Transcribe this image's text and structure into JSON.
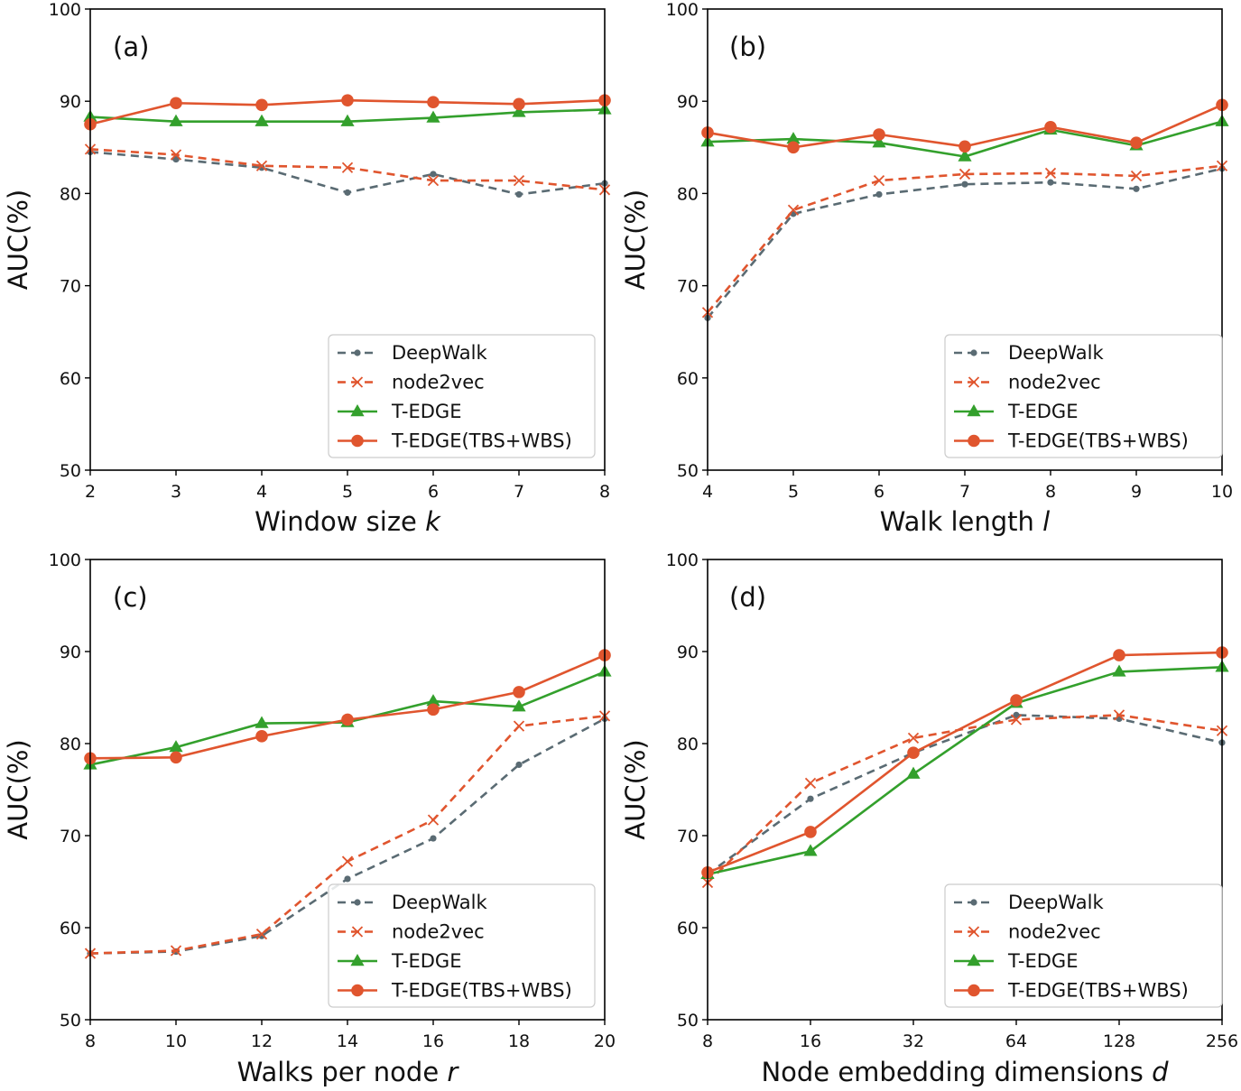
{
  "legend": {
    "DeepWalk": "DeepWalk",
    "node2vec": "node2vec",
    "T-EDGE": "T-EDGE",
    "T-EDGE(TBS+WBS)": "T-EDGE(TBS+WBS)"
  },
  "chart_data": [
    {
      "type": "line",
      "panel": "(a)",
      "xlabel": "Window size",
      "xvar": "k",
      "ylabel": "AUC(%)",
      "ylim": [
        50,
        100
      ],
      "yticks": [
        50,
        60,
        70,
        80,
        90,
        100
      ],
      "xscale": "categorical",
      "categories": [
        "2",
        "3",
        "4",
        "5",
        "6",
        "7",
        "8"
      ],
      "legend_position": "lower-right",
      "series": [
        {
          "name": "DeepWalk",
          "values": [
            84.5,
            83.7,
            82.8,
            80.1,
            82.1,
            79.9,
            81.1
          ]
        },
        {
          "name": "node2vec",
          "values": [
            84.8,
            84.2,
            83.0,
            82.8,
            81.4,
            81.4,
            80.4
          ]
        },
        {
          "name": "T-EDGE",
          "values": [
            88.3,
            87.8,
            87.8,
            87.8,
            88.2,
            88.8,
            89.1
          ]
        },
        {
          "name": "T-EDGE(TBS+WBS)",
          "values": [
            87.5,
            89.8,
            89.6,
            90.1,
            89.9,
            89.7,
            90.1
          ]
        }
      ]
    },
    {
      "type": "line",
      "panel": "(b)",
      "xlabel": "Walk length",
      "xvar": "l",
      "ylabel": "AUC(%)",
      "ylim": [
        50,
        100
      ],
      "yticks": [
        50,
        60,
        70,
        80,
        90,
        100
      ],
      "xscale": "categorical",
      "categories": [
        "4",
        "5",
        "6",
        "7",
        "8",
        "9",
        "10"
      ],
      "legend_position": "lower-right",
      "series": [
        {
          "name": "DeepWalk",
          "values": [
            66.5,
            77.8,
            79.9,
            81.0,
            81.2,
            80.5,
            82.7
          ]
        },
        {
          "name": "node2vec",
          "values": [
            67.1,
            78.2,
            81.4,
            82.1,
            82.2,
            81.9,
            83.0
          ]
        },
        {
          "name": "T-EDGE",
          "values": [
            85.6,
            85.9,
            85.5,
            84.0,
            86.9,
            85.2,
            87.8
          ]
        },
        {
          "name": "T-EDGE(TBS+WBS)",
          "values": [
            86.6,
            85.0,
            86.4,
            85.1,
            87.2,
            85.5,
            89.6
          ]
        }
      ]
    },
    {
      "type": "line",
      "panel": "(c)",
      "xlabel": "Walks per node",
      "xvar": "r",
      "ylabel": "AUC(%)",
      "ylim": [
        50,
        100
      ],
      "yticks": [
        50,
        60,
        70,
        80,
        90,
        100
      ],
      "xscale": "categorical",
      "categories": [
        "8",
        "10",
        "12",
        "14",
        "16",
        "18",
        "20"
      ],
      "legend_position": "lower-right",
      "series": [
        {
          "name": "DeepWalk",
          "values": [
            57.2,
            57.4,
            59.1,
            65.3,
            69.7,
            77.7,
            82.7
          ]
        },
        {
          "name": "node2vec",
          "values": [
            57.2,
            57.5,
            59.3,
            67.2,
            71.7,
            81.9,
            83.0
          ]
        },
        {
          "name": "T-EDGE",
          "values": [
            77.7,
            79.6,
            82.2,
            82.3,
            84.6,
            84.0,
            87.8
          ]
        },
        {
          "name": "T-EDGE(TBS+WBS)",
          "values": [
            78.4,
            78.5,
            80.8,
            82.6,
            83.7,
            85.6,
            89.6
          ]
        }
      ]
    },
    {
      "type": "line",
      "panel": "(d)",
      "xlabel": "Node embedding dimensions",
      "xvar": "d",
      "ylabel": "AUC(%)",
      "ylim": [
        50,
        100
      ],
      "yticks": [
        50,
        60,
        70,
        80,
        90,
        100
      ],
      "xscale": "log2",
      "categories": [
        "8",
        "16",
        "32",
        "64",
        "128",
        "256"
      ],
      "legend_position": "lower-right",
      "series": [
        {
          "name": "DeepWalk",
          "values": [
            65.8,
            74.0,
            79.0,
            83.1,
            82.7,
            80.1
          ]
        },
        {
          "name": "node2vec",
          "values": [
            64.9,
            75.7,
            80.6,
            82.6,
            83.1,
            81.4
          ]
        },
        {
          "name": "T-EDGE",
          "values": [
            65.8,
            68.3,
            76.7,
            84.4,
            87.8,
            88.3
          ]
        },
        {
          "name": "T-EDGE(TBS+WBS)",
          "values": [
            66.0,
            70.4,
            79.0,
            84.7,
            89.6,
            89.9
          ]
        }
      ]
    }
  ],
  "style": {
    "DeepWalk": {
      "color": "#5a6b73",
      "dash": "9,6",
      "marker": "dot"
    },
    "node2vec": {
      "color": "#e0552e",
      "dash": "9,6",
      "marker": "x"
    },
    "T-EDGE": {
      "color": "#33a02c",
      "dash": "",
      "marker": "triangle"
    },
    "T-EDGE(TBS+WBS)": {
      "color": "#e0552e",
      "dash": "",
      "marker": "circle"
    }
  }
}
